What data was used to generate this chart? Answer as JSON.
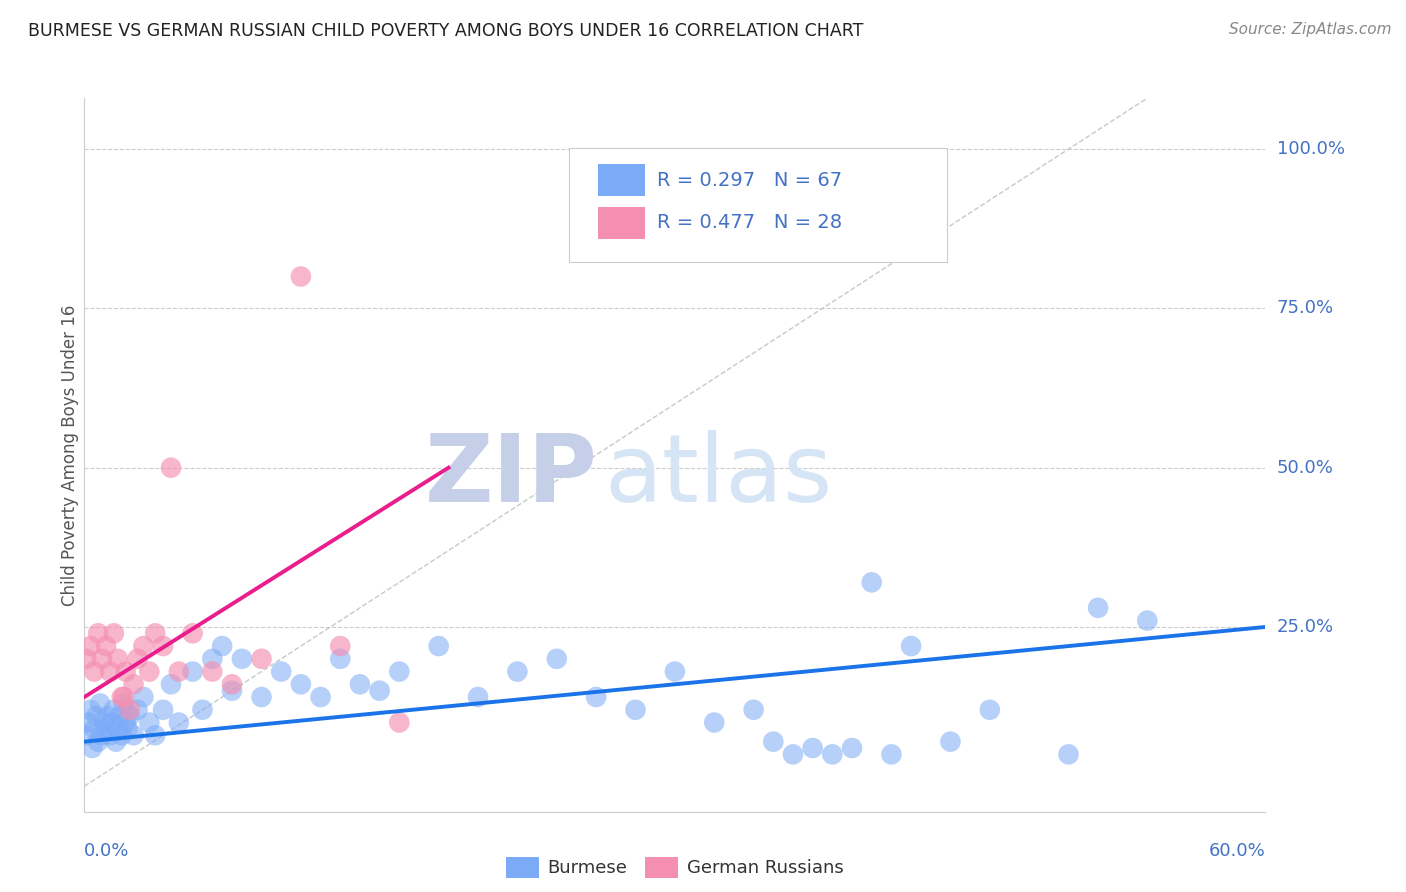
{
  "title": "BURMESE VS GERMAN RUSSIAN CHILD POVERTY AMONG BOYS UNDER 16 CORRELATION CHART",
  "source": "Source: ZipAtlas.com",
  "ylabel": "Child Poverty Among Boys Under 16",
  "ytick_labels": [
    "100.0%",
    "75.0%",
    "50.0%",
    "25.0%"
  ],
  "ytick_values": [
    1.0,
    0.75,
    0.5,
    0.25
  ],
  "xlim": [
    0.0,
    0.6
  ],
  "ylim": [
    -0.04,
    1.08
  ],
  "legend_burmese_R": "0.297",
  "legend_burmese_N": "67",
  "legend_german_R": "0.477",
  "legend_german_N": "28",
  "burmese_color": "#7baaf7",
  "german_color": "#f48fb1",
  "burmese_line_color": "#1a73e8",
  "german_line_color": "#e91e8c",
  "diagonal_color": "#bbbbbb",
  "watermark_ZIP_color": "#c5cfe8",
  "watermark_atlas_color": "#d5e5f5",
  "burmese_label": "Burmese",
  "german_label": "German Russians",
  "burmese_x": [
    0.001,
    0.002,
    0.003,
    0.004,
    0.005,
    0.006,
    0.007,
    0.008,
    0.009,
    0.01,
    0.011,
    0.012,
    0.013,
    0.014,
    0.015,
    0.016,
    0.017,
    0.018,
    0.019,
    0.02,
    0.021,
    0.022,
    0.023,
    0.025,
    0.027,
    0.03,
    0.033,
    0.036,
    0.04,
    0.044,
    0.048,
    0.055,
    0.06,
    0.065,
    0.07,
    0.075,
    0.08,
    0.09,
    0.1,
    0.11,
    0.12,
    0.13,
    0.14,
    0.15,
    0.16,
    0.18,
    0.2,
    0.22,
    0.24,
    0.26,
    0.28,
    0.3,
    0.32,
    0.34,
    0.36,
    0.38,
    0.4,
    0.42,
    0.44,
    0.46,
    0.35,
    0.37,
    0.39,
    0.41,
    0.5,
    0.515,
    0.54
  ],
  "burmese_y": [
    0.08,
    0.1,
    0.12,
    0.06,
    0.09,
    0.11,
    0.07,
    0.13,
    0.08,
    0.1,
    0.09,
    0.11,
    0.08,
    0.1,
    0.12,
    0.07,
    0.09,
    0.11,
    0.08,
    0.13,
    0.1,
    0.09,
    0.11,
    0.08,
    0.12,
    0.14,
    0.1,
    0.08,
    0.12,
    0.16,
    0.1,
    0.18,
    0.12,
    0.2,
    0.22,
    0.15,
    0.2,
    0.14,
    0.18,
    0.16,
    0.14,
    0.2,
    0.16,
    0.15,
    0.18,
    0.22,
    0.14,
    0.18,
    0.2,
    0.14,
    0.12,
    0.18,
    0.1,
    0.12,
    0.05,
    0.05,
    0.32,
    0.22,
    0.07,
    0.12,
    0.07,
    0.06,
    0.06,
    0.05,
    0.05,
    0.28,
    0.26
  ],
  "german_x": [
    0.001,
    0.003,
    0.005,
    0.007,
    0.009,
    0.011,
    0.013,
    0.015,
    0.017,
    0.019,
    0.021,
    0.023,
    0.025,
    0.027,
    0.03,
    0.033,
    0.036,
    0.04,
    0.044,
    0.048,
    0.055,
    0.065,
    0.075,
    0.09,
    0.11,
    0.13,
    0.16,
    0.02
  ],
  "german_y": [
    0.2,
    0.22,
    0.18,
    0.24,
    0.2,
    0.22,
    0.18,
    0.24,
    0.2,
    0.14,
    0.18,
    0.12,
    0.16,
    0.2,
    0.22,
    0.18,
    0.24,
    0.22,
    0.5,
    0.18,
    0.24,
    0.18,
    0.16,
    0.2,
    0.8,
    0.22,
    0.1,
    0.14
  ],
  "burmese_trend_x": [
    0.0,
    0.6
  ],
  "burmese_trend_y": [
    0.07,
    0.25
  ],
  "german_trend_x": [
    0.0,
    0.185
  ],
  "german_trend_y": [
    0.14,
    0.5
  ]
}
